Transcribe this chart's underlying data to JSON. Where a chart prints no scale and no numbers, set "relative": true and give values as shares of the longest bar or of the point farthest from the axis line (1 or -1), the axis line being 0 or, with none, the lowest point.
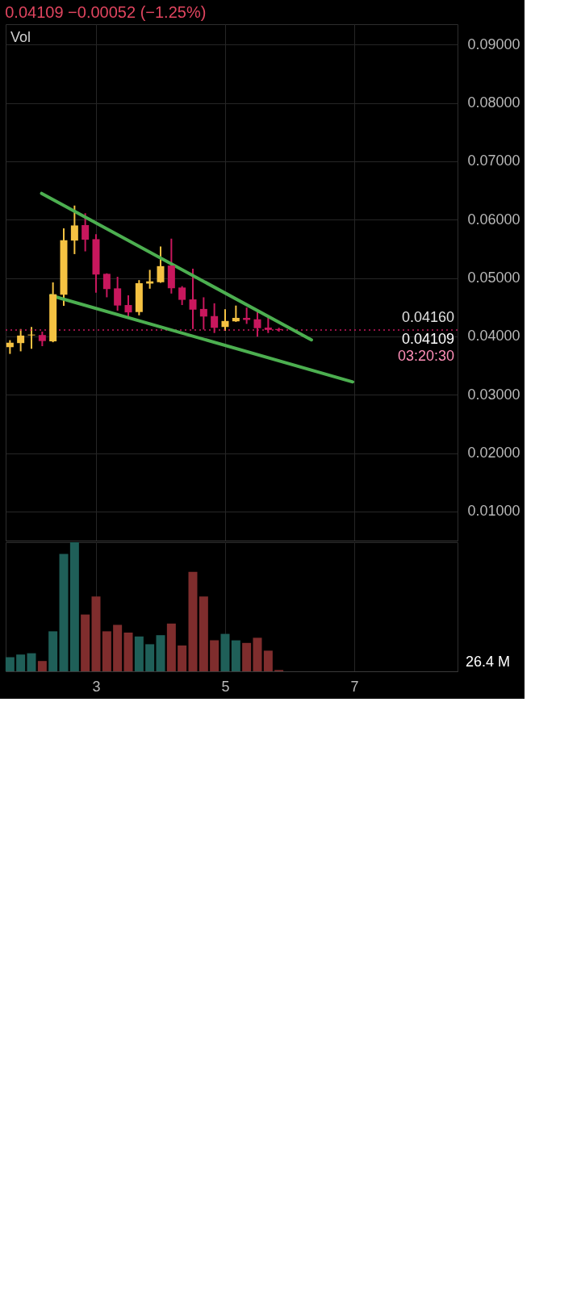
{
  "chart_data": [
    {
      "type": "candlestick",
      "subtitle": "0.04109  −0.00052 (−1.25%)",
      "x": [
        1.667,
        1.833,
        2,
        2.167,
        2.333,
        2.5,
        2.667,
        2.833,
        3,
        3.167,
        3.333,
        3.5,
        3.667,
        3.833,
        4,
        4.167,
        4.333,
        4.5,
        4.667,
        4.833,
        5,
        5.167,
        5.333,
        5.5,
        5.667,
        5.833
      ],
      "ohlc": [
        [
          0.03817,
          0.03935,
          0.037,
          0.03891
        ],
        [
          0.03885,
          0.04126,
          0.03744,
          0.04014
        ],
        [
          0.04017,
          0.04161,
          0.03788,
          0.04031
        ],
        [
          0.04023,
          0.04082,
          0.03832,
          0.0392
        ],
        [
          0.03915,
          0.04925,
          0.039,
          0.04722
        ],
        [
          0.04714,
          0.05851,
          0.04523,
          0.05648
        ],
        [
          0.05642,
          0.06242,
          0.0541,
          0.05901
        ],
        [
          0.05907,
          0.0611,
          0.05457,
          0.05657
        ],
        [
          0.05666,
          0.05751,
          0.04749,
          0.0506
        ],
        [
          0.05072,
          0.05081,
          0.0467,
          0.04811
        ],
        [
          0.04823,
          0.05022,
          0.0444,
          0.04529
        ],
        [
          0.04537,
          0.04705,
          0.04323,
          0.04411
        ],
        [
          0.04417,
          0.04964,
          0.04361,
          0.04911
        ],
        [
          0.04905,
          0.0514,
          0.04817,
          0.04943
        ],
        [
          0.04928,
          0.05542,
          0.04919,
          0.05204
        ],
        [
          0.05213,
          0.05675,
          0.04734,
          0.04825
        ],
        [
          0.04837,
          0.04861,
          0.04537,
          0.04626
        ],
        [
          0.04634,
          0.0516,
          0.04126,
          0.04458
        ],
        [
          0.0447,
          0.0467,
          0.04117,
          0.0434
        ],
        [
          0.04346,
          0.04567,
          0.04058,
          0.04147
        ],
        [
          0.04161,
          0.04464,
          0.04097,
          0.04264
        ],
        [
          0.04258,
          0.04528,
          0.04249,
          0.04317
        ],
        [
          0.04317,
          0.04493,
          0.04214,
          0.04282
        ],
        [
          0.04293,
          0.0442,
          0.03994,
          0.04141
        ],
        [
          0.0415,
          0.04323,
          0.04058,
          0.04111
        ],
        [
          0.04126,
          0.04147,
          0.04082,
          0.04109
        ]
      ],
      "colors": [
        "#f5c242",
        "#f5c242",
        "#f5c242",
        "#c8175d",
        "#f5c242",
        "#f5c242",
        "#f5c242",
        "#c8175d",
        "#c8175d",
        "#c8175d",
        "#c8175d",
        "#c8175d",
        "#f5c242",
        "#f5c242",
        "#f5c242",
        "#c8175d",
        "#c8175d",
        "#c8175d",
        "#c8175d",
        "#c8175d",
        "#f5c242",
        "#f5c242",
        "#c8175d",
        "#c8175d",
        "#c8175d",
        "#c8175d"
      ],
      "series": [
        {
          "type": "line",
          "color": "#4caf50",
          "x": [
            2.157,
            6.337
          ],
          "values": [
            0.0645,
            0.0394
          ]
        },
        {
          "type": "line",
          "color": "#4caf50",
          "x": [
            2.301,
            6.976
          ],
          "values": [
            0.047,
            0.0322
          ]
        }
      ],
      "xlim": [
        1.6,
        8.6
      ],
      "xticks": [
        3,
        5,
        7
      ],
      "ylim": [
        0.005,
        0.0935
      ],
      "yticks": [
        {
          "value": 0.01,
          "label": "0.01000"
        },
        {
          "value": 0.02,
          "label": "0.02000"
        },
        {
          "value": 0.03,
          "label": "0.03000"
        },
        {
          "value": 0.04,
          "label": "0.04000"
        },
        {
          "value": 0.05,
          "label": "0.05000"
        },
        {
          "value": 0.06,
          "label": "0.06000"
        },
        {
          "value": 0.07,
          "label": "0.07000"
        },
        {
          "value": 0.08,
          "label": "0.08000"
        },
        {
          "value": 0.09,
          "label": "0.09000"
        }
      ],
      "grid": true,
      "tick_labels": "y",
      "ref_lines": [
        {
          "axis": "y",
          "value": 0.04109,
          "label": "0.04109",
          "color": "#c8175d",
          "line_style": "dotted"
        }
      ],
      "annotations": [
        "Vol",
        {
          "text": "0.04160",
          "y": 0.0416
        },
        {
          "text": "03:20:30",
          "y": 0.04109
        }
      ]
    },
    {
      "type": "bar",
      "relative": true,
      "x": [
        1.667,
        1.833,
        2,
        2.167,
        2.333,
        2.5,
        2.667,
        2.833,
        3,
        3.167,
        3.333,
        3.5,
        3.667,
        3.833,
        4,
        4.167,
        4.333,
        4.5,
        4.667,
        4.833,
        5,
        5.167,
        5.333,
        5.5,
        5.667,
        5.833
      ],
      "values": [
        0.11,
        0.13,
        0.14,
        0.08,
        0.31,
        0.91,
        1,
        0.44,
        0.58,
        0.31,
        0.36,
        0.3,
        0.27,
        0.21,
        0.28,
        0.37,
        0.2,
        0.77,
        0.58,
        0.24,
        0.29,
        0.24,
        0.22,
        0.26,
        0.16,
        0.01
      ],
      "colors": [
        "#1f5f58",
        "#1f5f58",
        "#1f5f58",
        "#7f2d2d",
        "#1f5f58",
        "#1f5f58",
        "#1f5f58",
        "#7f2d2d",
        "#7f2d2d",
        "#7f2d2d",
        "#7f2d2d",
        "#7f2d2d",
        "#1f5f58",
        "#1f5f58",
        "#1f5f58",
        "#7f2d2d",
        "#7f2d2d",
        "#7f2d2d",
        "#7f2d2d",
        "#7f2d2d",
        "#1f5f58",
        "#1f5f58",
        "#7f2d2d",
        "#7f2d2d",
        "#7f2d2d",
        "#7f2d2d"
      ],
      "xlim": [
        1.6,
        8.6
      ],
      "xticks": [
        3,
        5,
        7
      ],
      "grid": "x",
      "annotations": [
        "26.4 M"
      ]
    }
  ]
}
